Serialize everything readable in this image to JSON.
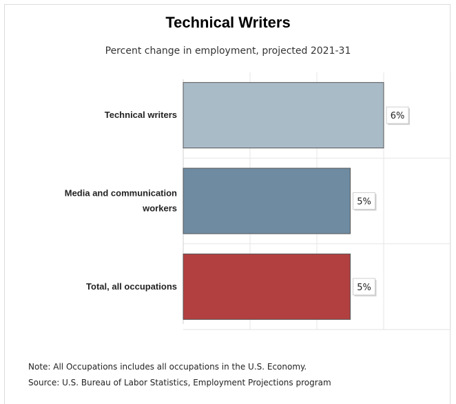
{
  "chart_data": {
    "type": "bar",
    "orientation": "horizontal",
    "title": "Technical Writers",
    "subtitle": "Percent change in employment, projected 2021-31",
    "categories": [
      "Technical writers",
      "Media and communication workers",
      "Total, all occupations"
    ],
    "category_lines": [
      [
        "Technical writers"
      ],
      [
        "Media and communication",
        "workers"
      ],
      [
        "Total, all occupations"
      ]
    ],
    "values": [
      6,
      5,
      5
    ],
    "value_labels": [
      "6%",
      "5%",
      "5%"
    ],
    "colors": [
      "#aabbc8",
      "#6e8ba1",
      "#b24040"
    ],
    "xlim": [
      0,
      8
    ],
    "grid": true,
    "legend": "none"
  },
  "notes": {
    "note": "Note: All Occupations includes all occupations in the U.S. Economy.",
    "source": "Source: U.S. Bureau of Labor Statistics, Employment Projections program"
  }
}
